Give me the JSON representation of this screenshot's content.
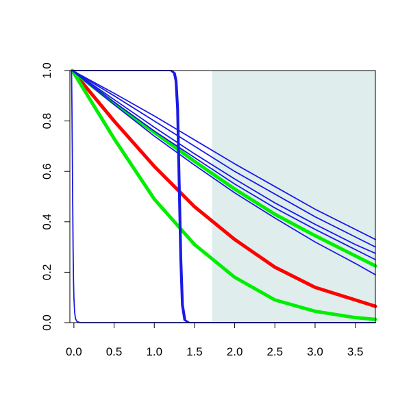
{
  "chart_data": {
    "type": "line",
    "title": "",
    "xlabel": "",
    "ylabel": "",
    "xlim": [
      -0.05,
      3.75
    ],
    "ylim": [
      0,
      1
    ],
    "grid": false,
    "legend": "none",
    "x_ticks": [
      {
        "value": 0.0,
        "label": "0.0"
      },
      {
        "value": 0.5,
        "label": "0.5"
      },
      {
        "value": 1.0,
        "label": "1.0"
      },
      {
        "value": 1.5,
        "label": "1.5"
      },
      {
        "value": 2.0,
        "label": "2.0"
      },
      {
        "value": 2.5,
        "label": "2.5"
      },
      {
        "value": 3.0,
        "label": "3.0"
      },
      {
        "value": 3.5,
        "label": "3.5"
      }
    ],
    "y_ticks": [
      {
        "value": 0.0,
        "label": "0.0"
      },
      {
        "value": 0.2,
        "label": "0.2"
      },
      {
        "value": 0.4,
        "label": "0.4"
      },
      {
        "value": 0.6,
        "label": "0.6"
      },
      {
        "value": 0.8,
        "label": "0.8"
      },
      {
        "value": 1.0,
        "label": "1.0"
      }
    ],
    "shaded_region": {
      "x_from": 1.72,
      "x_to": 3.75,
      "color": "#dfeded"
    },
    "series": [
      {
        "color": "#ff0000",
        "width": "thick",
        "x": [
          -0.02,
          0.5,
          1.0,
          1.5,
          2.0,
          2.5,
          3.0,
          3.5,
          3.75
        ],
        "y": [
          1.0,
          0.8,
          0.62,
          0.46,
          0.33,
          0.22,
          0.14,
          0.09,
          0.065
        ]
      },
      {
        "color": "#00ee00",
        "width": "thick",
        "x": [
          -0.02,
          0.5,
          1.0,
          1.5,
          2.0,
          2.5,
          3.0,
          3.5,
          3.75
        ],
        "y": [
          1.0,
          0.73,
          0.49,
          0.31,
          0.18,
          0.09,
          0.045,
          0.02,
          0.013
        ]
      },
      {
        "color": "#00ee00",
        "width": "thick",
        "x": [
          -0.02,
          0.5,
          1.0,
          1.5,
          2.0,
          2.5,
          3.0,
          3.5,
          3.75
        ],
        "y": [
          1.0,
          0.87,
          0.755,
          0.64,
          0.53,
          0.43,
          0.345,
          0.265,
          0.225
        ]
      },
      {
        "color": "#1a1ae6",
        "width": "thin",
        "x": [
          -0.02,
          0.5,
          1.0,
          1.5,
          2.0,
          2.5,
          3.0,
          3.5,
          3.75
        ],
        "y": [
          1.0,
          0.91,
          0.82,
          0.725,
          0.63,
          0.54,
          0.45,
          0.37,
          0.33
        ]
      },
      {
        "color": "#1a1ae6",
        "width": "thin",
        "x": [
          -0.02,
          0.5,
          1.0,
          1.5,
          2.0,
          2.5,
          3.0,
          3.5,
          3.75
        ],
        "y": [
          1.0,
          0.9,
          0.8,
          0.7,
          0.6,
          0.51,
          0.42,
          0.34,
          0.3
        ]
      },
      {
        "color": "#1a1ae6",
        "width": "thin",
        "x": [
          -0.02,
          0.5,
          1.0,
          1.5,
          2.0,
          2.5,
          3.0,
          3.5,
          3.75
        ],
        "y": [
          1.0,
          0.885,
          0.775,
          0.67,
          0.57,
          0.475,
          0.39,
          0.31,
          0.275
        ]
      },
      {
        "color": "#1a1ae6",
        "width": "thin",
        "x": [
          -0.02,
          0.5,
          1.0,
          1.5,
          2.0,
          2.5,
          3.0,
          3.5,
          3.75
        ],
        "y": [
          1.0,
          0.875,
          0.76,
          0.655,
          0.55,
          0.455,
          0.37,
          0.29,
          0.25
        ]
      },
      {
        "color": "#1a1ae6",
        "width": "thin",
        "x": [
          -0.02,
          0.5,
          1.0,
          1.5,
          2.0,
          2.5,
          3.0,
          3.5,
          3.75
        ],
        "y": [
          1.0,
          0.865,
          0.74,
          0.625,
          0.515,
          0.415,
          0.32,
          0.235,
          0.19
        ]
      },
      {
        "color": "#1a1ae6",
        "width": "thin",
        "x": [
          -0.03,
          -0.028,
          -0.025,
          -0.02,
          -0.015,
          -0.01,
          -0.005,
          0.0,
          0.01,
          0.02,
          0.04,
          0.08,
          3.75
        ],
        "y": [
          1.0,
          0.97,
          0.88,
          0.7,
          0.48,
          0.3,
          0.17,
          0.1,
          0.04,
          0.015,
          0.004,
          0.0,
          0.0
        ]
      },
      {
        "color": "#1a1ae6",
        "width": "thin",
        "x": [
          -0.02,
          1.2,
          1.24,
          1.26,
          1.28,
          1.3,
          1.32,
          1.34,
          1.37,
          1.42,
          3.75
        ],
        "y": [
          1.0,
          1.0,
          0.99,
          0.96,
          0.85,
          0.55,
          0.25,
          0.07,
          0.01,
          0.0,
          0.0
        ]
      },
      {
        "color": "#1a1ae6",
        "width": "thin",
        "x": [
          -0.02,
          1.21,
          1.25,
          1.27,
          1.29,
          1.31,
          1.33,
          1.35,
          1.38,
          1.43,
          3.75
        ],
        "y": [
          1.0,
          1.0,
          0.99,
          0.96,
          0.85,
          0.55,
          0.25,
          0.07,
          0.01,
          0.0,
          0.0
        ]
      },
      {
        "color": "#1a1ae6",
        "width": "thin",
        "x": [
          -0.02,
          1.22,
          1.26,
          1.28,
          1.3,
          1.32,
          1.34,
          1.36,
          1.39,
          1.44,
          3.75
        ],
        "y": [
          1.0,
          1.0,
          0.99,
          0.96,
          0.85,
          0.55,
          0.25,
          0.07,
          0.01,
          0.0,
          0.0
        ]
      }
    ]
  }
}
